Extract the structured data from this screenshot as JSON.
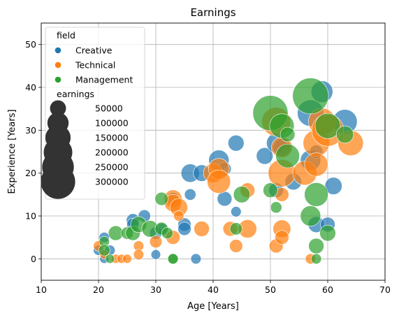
{
  "chart_data": {
    "type": "scatter",
    "title": "Earnings",
    "xlabel": "Age [Years]",
    "ylabel": "Experience [Years]",
    "xlim": [
      10,
      70
    ],
    "ylim": [
      -5,
      55
    ],
    "xticks": [
      10,
      20,
      30,
      40,
      50,
      60,
      70
    ],
    "yticks": [
      0,
      10,
      20,
      30,
      40,
      50
    ],
    "grid": true,
    "legend_placement": "top-left",
    "hue_title": "field",
    "size_title": "earnings",
    "size_legend": [
      50000,
      100000,
      150000,
      200000,
      250000,
      300000
    ],
    "series": [
      {
        "name": "Creative",
        "color": "#1f77b4",
        "points": [
          [
            20,
            2,
            15000
          ],
          [
            21,
            5,
            15000
          ],
          [
            21,
            0,
            10000
          ],
          [
            22,
            2,
            15000
          ],
          [
            26,
            9,
            30000
          ],
          [
            26,
            8,
            25000
          ],
          [
            28,
            10,
            25000
          ],
          [
            30,
            6,
            25000
          ],
          [
            30,
            1,
            12000
          ],
          [
            31,
            7,
            20000
          ],
          [
            33,
            14,
            25000
          ],
          [
            35,
            8,
            30000
          ],
          [
            35,
            7,
            30000
          ],
          [
            36,
            20,
            70000
          ],
          [
            36,
            15,
            20000
          ],
          [
            37,
            0,
            15000
          ],
          [
            38,
            20,
            55000
          ],
          [
            41,
            23,
            90000
          ],
          [
            42,
            14,
            40000
          ],
          [
            42,
            21,
            30000
          ],
          [
            44,
            27,
            50000
          ],
          [
            44,
            11,
            15000
          ],
          [
            49,
            24,
            55000
          ],
          [
            51,
            27,
            80000
          ],
          [
            51,
            16,
            40000
          ],
          [
            52,
            26,
            65000
          ],
          [
            54,
            18,
            55000
          ],
          [
            57,
            34,
            165000
          ],
          [
            57,
            23,
            90000
          ],
          [
            58,
            25,
            30000
          ],
          [
            58,
            8,
            50000
          ],
          [
            59,
            39,
            105000
          ],
          [
            60,
            8,
            40000
          ],
          [
            61,
            17,
            60000
          ],
          [
            63,
            32,
            140000
          ]
        ]
      },
      {
        "name": "Technical",
        "color": "#ff7f0e",
        "points": [
          [
            20,
            3,
            15000
          ],
          [
            21,
            1,
            10000
          ],
          [
            23,
            0,
            10000
          ],
          [
            24,
            0,
            10000
          ],
          [
            25,
            0,
            10000
          ],
          [
            27,
            3,
            15000
          ],
          [
            27,
            1,
            15000
          ],
          [
            30,
            4,
            25000
          ],
          [
            33,
            14,
            65000
          ],
          [
            33,
            13,
            60000
          ],
          [
            33,
            5,
            35000
          ],
          [
            34,
            12,
            65000
          ],
          [
            34,
            10,
            15000
          ],
          [
            38,
            7,
            45000
          ],
          [
            40,
            20,
            80000
          ],
          [
            41,
            21,
            95000
          ],
          [
            41,
            18,
            125000
          ],
          [
            43,
            7,
            40000
          ],
          [
            44,
            3,
            30000
          ],
          [
            46,
            16,
            40000
          ],
          [
            46,
            7,
            70000
          ],
          [
            51,
            32,
            200000
          ],
          [
            51,
            3,
            35000
          ],
          [
            52,
            26,
            95000
          ],
          [
            52,
            20,
            180000
          ],
          [
            52,
            15,
            35000
          ],
          [
            52,
            7,
            65000
          ],
          [
            52,
            5,
            35000
          ],
          [
            56,
            20,
            135000
          ],
          [
            57,
            0,
            15000
          ],
          [
            58,
            27,
            165000
          ],
          [
            58,
            22,
            125000
          ],
          [
            59,
            32,
            175000
          ],
          [
            60,
            30,
            255000
          ],
          [
            64,
            27,
            150000
          ]
        ]
      },
      {
        "name": "Management",
        "color": "#2ca02c",
        "points": [
          [
            21,
            4,
            15000
          ],
          [
            21,
            2,
            20000
          ],
          [
            22,
            0,
            10000
          ],
          [
            23,
            6,
            40000
          ],
          [
            25,
            6,
            25000
          ],
          [
            26,
            6,
            40000
          ],
          [
            27,
            8,
            50000
          ],
          [
            29,
            7,
            55000
          ],
          [
            31,
            14,
            30000
          ],
          [
            31,
            7,
            30000
          ],
          [
            32,
            6,
            20000
          ],
          [
            33,
            0,
            15000
          ],
          [
            33,
            0,
            15000
          ],
          [
            44,
            7,
            25000
          ],
          [
            45,
            15,
            55000
          ],
          [
            50,
            34,
            315000
          ],
          [
            50,
            16,
            40000
          ],
          [
            51,
            12,
            20000
          ],
          [
            52,
            31,
            140000
          ],
          [
            53,
            29,
            40000
          ],
          [
            53,
            24,
            130000
          ],
          [
            57,
            38,
            330000
          ],
          [
            57,
            10,
            90000
          ],
          [
            58,
            15,
            130000
          ],
          [
            58,
            3,
            45000
          ],
          [
            58,
            0,
            15000
          ],
          [
            60,
            31,
            150000
          ],
          [
            60,
            6,
            50000
          ],
          [
            63,
            29,
            60000
          ]
        ]
      }
    ]
  }
}
